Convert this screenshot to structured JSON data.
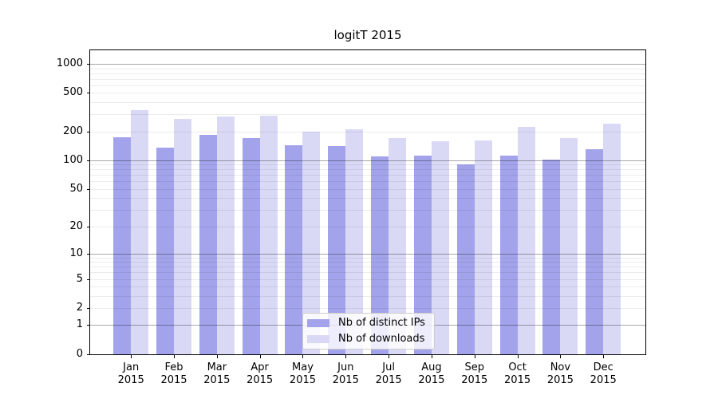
{
  "chart_data": {
    "type": "bar",
    "title": "logitT 2015",
    "categories": [
      "Jan",
      "Feb",
      "Mar",
      "Apr",
      "May",
      "Jun",
      "Jul",
      "Aug",
      "Sep",
      "Oct",
      "Nov",
      "Dec"
    ],
    "year_label": "2015",
    "series": [
      {
        "name": "Nb of distinct IPs",
        "color": "#a3a3eb",
        "values": [
          172,
          135,
          185,
          170,
          144,
          140,
          110,
          111,
          91,
          111,
          101,
          131
        ]
      },
      {
        "name": "Nb of downloads",
        "color": "#d9d9f6",
        "values": [
          330,
          271,
          285,
          288,
          200,
          209,
          169,
          157,
          160,
          224,
          169,
          238
        ]
      }
    ],
    "yticks": [
      0,
      1,
      2,
      5,
      10,
      20,
      50,
      100,
      200,
      500,
      1000
    ],
    "ylim": [
      0,
      1000
    ],
    "yscale": "log1p",
    "xlabel": "",
    "ylabel": "",
    "grid": "horizontal, minor log lines light + decade lines dark, drawn over bars",
    "legend_position": "bottom-center",
    "colors": {
      "axis": "#000000",
      "major_grid": "#aaaaaa",
      "minor_grid": "#ebebeb",
      "background": "#ffffff"
    }
  }
}
